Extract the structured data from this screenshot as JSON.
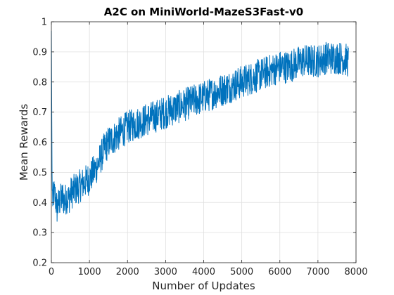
{
  "chart_data": {
    "type": "line",
    "title": "A2C on MiniWorld-MazeS3Fast-v0",
    "xlabel": "Number of Updates",
    "ylabel": "Mean Rewards",
    "xlim": [
      0,
      8000
    ],
    "ylim": [
      0.2,
      1.0
    ],
    "xticks": [
      0,
      1000,
      2000,
      3000,
      4000,
      5000,
      6000,
      7000,
      8000
    ],
    "yticks": [
      0.2,
      0.3,
      0.4,
      0.5,
      0.6,
      0.7,
      0.8,
      0.9,
      1.0
    ],
    "xtick_labels": [
      "0",
      "1000",
      "2000",
      "3000",
      "4000",
      "5000",
      "6000",
      "7000",
      "8000"
    ],
    "ytick_labels": [
      "0.2",
      "0.3",
      "0.4",
      "0.5",
      "0.6",
      "0.7",
      "0.8",
      "0.9",
      "1"
    ],
    "grid": true,
    "line_color": "#0072BD",
    "series": [
      {
        "x": [
          0,
          20,
          40,
          60,
          100,
          150,
          200,
          250,
          300,
          350,
          400,
          450,
          500,
          600,
          700,
          800,
          900,
          1000,
          1100,
          1200,
          1300,
          1400,
          1500,
          1600,
          1700,
          1800,
          1900,
          2000,
          2200,
          2400,
          2600,
          2800,
          3000,
          3200,
          3400,
          3600,
          3800,
          4000,
          4200,
          4400,
          4600,
          4800,
          5000,
          5200,
          5400,
          5600,
          5800,
          6000,
          6200,
          6400,
          6600,
          6800,
          7000,
          7200,
          7400,
          7600,
          7800
        ],
        "values": [
          0.97,
          0.45,
          0.4,
          0.43,
          0.42,
          0.38,
          0.4,
          0.41,
          0.42,
          0.4,
          0.42,
          0.41,
          0.43,
          0.44,
          0.45,
          0.46,
          0.47,
          0.48,
          0.5,
          0.52,
          0.55,
          0.58,
          0.6,
          0.61,
          0.62,
          0.63,
          0.64,
          0.65,
          0.66,
          0.67,
          0.68,
          0.69,
          0.7,
          0.71,
          0.72,
          0.73,
          0.74,
          0.75,
          0.76,
          0.77,
          0.78,
          0.79,
          0.8,
          0.81,
          0.82,
          0.83,
          0.84,
          0.85,
          0.85,
          0.86,
          0.87,
          0.87,
          0.87,
          0.88,
          0.88,
          0.88,
          0.87
        ]
      }
    ]
  }
}
